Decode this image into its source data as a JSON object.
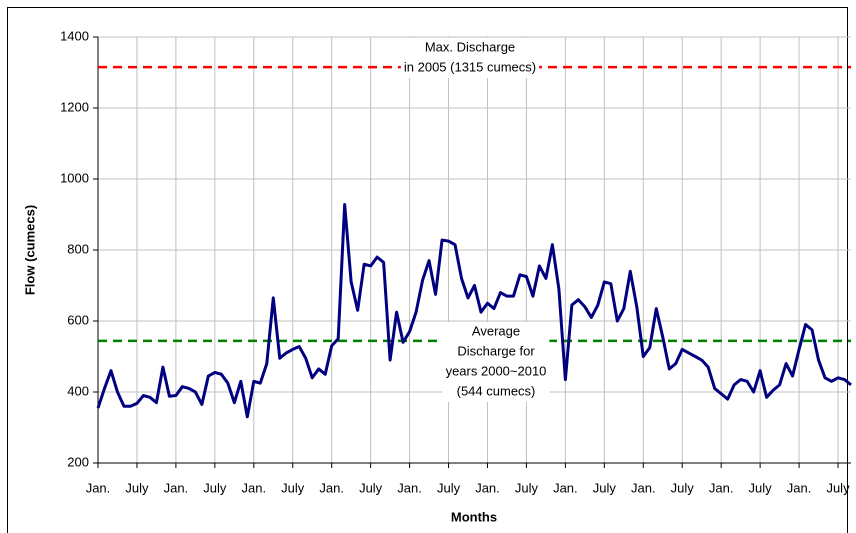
{
  "chart_data": {
    "type": "line",
    "y_label": "Flow (cumecs)",
    "x_label": "Months",
    "categories": [
      "Jan.",
      null,
      null,
      null,
      null,
      null,
      "July",
      null,
      null,
      null,
      null,
      null,
      "Jan.",
      null,
      null,
      null,
      null,
      null,
      "July",
      null,
      null,
      null,
      null,
      null,
      "Jan.",
      null,
      null,
      null,
      null,
      null,
      "July",
      null,
      null,
      null,
      null,
      null,
      "Jan.",
      null,
      null,
      null,
      null,
      null,
      "July",
      null,
      null,
      null,
      null,
      null,
      "Jan.",
      null,
      null,
      null,
      null,
      null,
      "July",
      null,
      null,
      null,
      null,
      null,
      "Jan.",
      null,
      null,
      null,
      null,
      null,
      "July",
      null,
      null,
      null,
      null,
      null,
      "Jan.",
      null,
      null,
      null,
      null,
      null,
      "July",
      null,
      null,
      null,
      null,
      null,
      "Jan.",
      null,
      null,
      null,
      null,
      null,
      "July",
      null,
      null,
      null,
      null,
      null,
      "Jan.",
      null,
      null,
      null,
      null,
      null,
      "July",
      null,
      null,
      null,
      null,
      null,
      "Jan.",
      null,
      null,
      null,
      null,
      null,
      "July",
      null,
      null
    ],
    "series": [
      {
        "color": "#000080",
        "values": [
          355,
          410,
          460,
          400,
          360,
          360,
          368,
          390,
          385,
          370,
          470,
          388,
          390,
          415,
          410,
          400,
          365,
          445,
          455,
          450,
          425,
          370,
          430,
          330,
          430,
          425,
          480,
          665,
          495,
          510,
          520,
          528,
          495,
          440,
          465,
          450,
          530,
          550,
          928,
          710,
          630,
          760,
          755,
          780,
          765,
          490,
          625,
          540,
          570,
          625,
          715,
          770,
          675,
          828,
          825,
          815,
          720,
          665,
          700,
          625,
          650,
          635,
          680,
          670,
          670,
          730,
          725,
          670,
          755,
          720,
          815,
          690,
          435,
          645,
          660,
          640,
          610,
          645,
          710,
          705,
          600,
          635,
          740,
          640,
          500,
          525,
          635,
          555,
          465,
          480,
          520,
          510,
          500,
          490,
          470,
          410,
          395,
          380,
          420,
          435,
          430,
          400,
          460,
          385,
          405,
          420,
          480,
          445,
          520,
          590,
          575,
          490,
          440,
          430,
          440,
          435,
          420
        ]
      }
    ],
    "reference_lines": [
      {
        "value": 1315,
        "color": "#ff0000",
        "label": [
          "Max. Discharge",
          "in 2005 (1315 cumecs)"
        ]
      },
      {
        "value": 544,
        "color": "#008000",
        "label": [
          "Average",
          "Discharge for",
          "years 2000~2010",
          "(544 cumecs)"
        ]
      }
    ],
    "ylim": [
      200,
      1400
    ],
    "yticks": [
      200,
      400,
      600,
      800,
      1000,
      1200,
      1400
    ],
    "grid": true
  }
}
